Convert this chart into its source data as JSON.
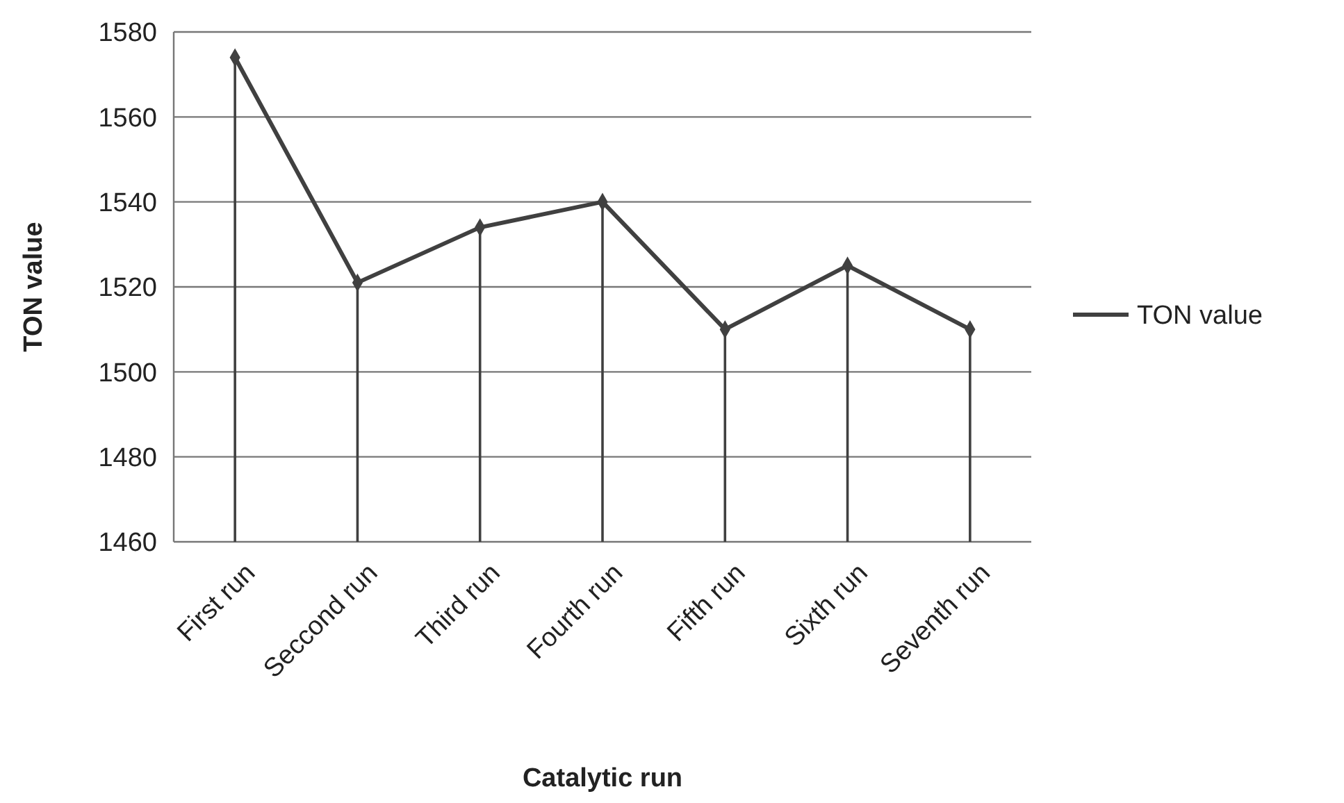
{
  "chart_data": {
    "type": "line",
    "xlabel": "Catalytic run",
    "ylabel": "TON value",
    "categories": [
      "First run",
      "Seccond run",
      "Third run",
      "Fourth run",
      "Fifth run",
      "Sixth run",
      "Seventh run"
    ],
    "series": [
      {
        "type": "lollipop",
        "color": "#404040",
        "marker": "diamond",
        "values": [
          1574,
          1521,
          1534,
          1540,
          1510,
          1525,
          1510
        ]
      },
      {
        "name": "TON value",
        "color": "#404040",
        "marker": "none",
        "line_style": "solid",
        "values": [
          1574,
          1521,
          1534,
          1540,
          1510,
          1525,
          1510
        ]
      }
    ],
    "ylim": [
      1460,
      1580
    ],
    "yticks": [
      1460,
      1480,
      1500,
      1520,
      1540,
      1560,
      1580
    ],
    "grid": "y",
    "legend": "right"
  }
}
